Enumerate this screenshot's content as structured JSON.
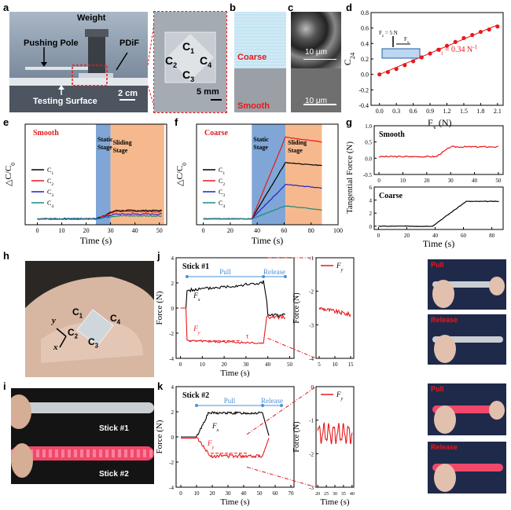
{
  "panels": {
    "a": {
      "letter": "a",
      "weight": "Weight",
      "pushing_pole": "Pushing Pole",
      "pdif": "PDiF",
      "testing_surface": "Testing Surface",
      "scale1": "2 cm",
      "scale2": "5 mm",
      "c1": "C",
      "c2": "C",
      "c3": "C",
      "c4": "C",
      "sub1": "1",
      "sub2": "2",
      "sub3": "3",
      "sub4": "4"
    },
    "b": {
      "letter": "b",
      "coarse": "Coarse",
      "smooth": "Smooth"
    },
    "c": {
      "letter": "c",
      "scale1": "10 μm",
      "scale2": "10 μm"
    },
    "d": {
      "letter": "d"
    },
    "e": {
      "letter": "e"
    },
    "f": {
      "letter": "f"
    },
    "g": {
      "letter": "g"
    },
    "h": {
      "letter": "h",
      "y": "y",
      "x": "x"
    },
    "i": {
      "letter": "i",
      "stick1": "Stick #1",
      "stick2": "Stick #2"
    },
    "j": {
      "letter": "j",
      "pull": "Pull",
      "release": "Release"
    },
    "k": {
      "letter": "k",
      "pull": "Pull",
      "release": "Release"
    }
  },
  "colors": {
    "red": "#e8191c",
    "blue": "#1f1fd0",
    "green": "#1a8a7a",
    "black": "#000000",
    "static": "#7fa6d6",
    "sliding": "#f6b98e"
  },
  "chart_data": [
    {
      "id": "d",
      "type": "scatter",
      "ylabel": "C",
      "ylabel_sub": "24",
      "xlabel": "F",
      "xlabel_sub": "x",
      "xlabel_unit": " (N)",
      "x": [
        0,
        0.15,
        0.3,
        0.45,
        0.6,
        0.75,
        0.9,
        1.05,
        1.2,
        1.35,
        1.5,
        1.65,
        1.8,
        1.95,
        2.1
      ],
      "y": [
        0.0,
        0.03,
        0.07,
        0.12,
        0.17,
        0.22,
        0.27,
        0.32,
        0.37,
        0.42,
        0.47,
        0.51,
        0.55,
        0.58,
        0.62
      ],
      "xticks": [
        "0.0",
        "0.3",
        "0.6",
        "0.9",
        "1.2",
        "1.5",
        "1.8",
        "2.1"
      ],
      "yticks": [
        "-0.4",
        "-0.2",
        "0.0",
        "0.2",
        "0.4",
        "0.6",
        "0.8"
      ],
      "xlim": [
        -0.15,
        2.2
      ],
      "ylim": [
        -0.4,
        0.8
      ],
      "annotation": "σ",
      "annotation_sub": "t",
      "annotation_rest": " = 0.34 N",
      "annotation_sup": "-1",
      "inset_fz": "F",
      "inset_fz_sub": "z",
      "inset_fz_rest": " = 5 N",
      "inset_fx": "F",
      "inset_fx_sub": "x"
    },
    {
      "id": "e",
      "type": "line",
      "title": "Smooth",
      "ylabel": "△C/C",
      "ylabel_sub": "0",
      "xlabel": "Time (s)",
      "xticks": [
        "0",
        "10",
        "20",
        "30",
        "40",
        "50"
      ],
      "xlim": [
        -5,
        53
      ],
      "ylim": [
        -0.1,
        1.6
      ],
      "static_label": [
        "Static",
        "Stage"
      ],
      "sliding_label": [
        "Sliding",
        "Stage"
      ],
      "static_range": [
        24,
        30
      ],
      "sliding_range": [
        30,
        52
      ],
      "series": [
        {
          "name": "C",
          "sub": "1"
        },
        {
          "name": "C",
          "sub": "2"
        },
        {
          "name": "C",
          "sub": "3"
        },
        {
          "name": "C",
          "sub": "4"
        }
      ]
    },
    {
      "id": "f",
      "type": "line",
      "title": "Coarse",
      "ylabel": "△C/C",
      "ylabel_sub": "0",
      "xlabel": "Time (s)",
      "xticks": [
        "0",
        "20",
        "40",
        "60",
        "80",
        "100"
      ],
      "xlim": [
        -5,
        100
      ],
      "ylim": [
        -0.1,
        1.6
      ],
      "static_label": [
        "Static",
        "Stage"
      ],
      "sliding_label": [
        "Sliding",
        "Stage"
      ],
      "static_range": [
        36,
        61
      ],
      "sliding_range": [
        61,
        88
      ],
      "series": [
        {
          "name": "C",
          "sub": "1"
        },
        {
          "name": "C",
          "sub": "2"
        },
        {
          "name": "C",
          "sub": "3"
        },
        {
          "name": "C",
          "sub": "4"
        }
      ]
    },
    {
      "id": "g1",
      "type": "line",
      "title": "Smooth",
      "ylabel": "Tangential Force (N)",
      "xticks": [
        "0",
        "10",
        "20",
        "30",
        "40",
        "50"
      ],
      "yticks": [
        "1.0",
        "0.5",
        "0.0",
        "-0.5"
      ],
      "xlim": [
        -2,
        52
      ],
      "ylim": [
        -0.5,
        1.0
      ]
    },
    {
      "id": "g2",
      "type": "line",
      "title": "Coarse",
      "xlabel": "Time (s)",
      "xticks": [
        "0",
        "20",
        "40",
        "60",
        "80"
      ],
      "yticks": [
        "6",
        "4",
        "2",
        "0"
      ],
      "xlim": [
        -3,
        88
      ],
      "ylim": [
        -0.5,
        6
      ]
    },
    {
      "id": "j",
      "type": "line",
      "title": "Stick #1",
      "ylabel": "Force (N)",
      "xlabel": "Time (s)",
      "xticks": [
        "0",
        "10",
        "20",
        "30",
        "40",
        "50"
      ],
      "yticks": [
        "4",
        "2",
        "0",
        "-2",
        "-4"
      ],
      "xlim": [
        -2,
        52
      ],
      "ylim": [
        -4,
        4
      ],
      "series": [
        {
          "name": "F",
          "sub": "x"
        },
        {
          "name": "F",
          "sub": "y"
        }
      ],
      "tau": "τ"
    },
    {
      "id": "j2",
      "type": "line",
      "legend": "F",
      "legend_sub": "y",
      "ylabel": "Force (N)",
      "xticks": [
        "5",
        "10",
        "15"
      ],
      "yticks": [
        "-1",
        "-2",
        "-3",
        "-4"
      ],
      "xlim": [
        4,
        16
      ],
      "ylim": [
        -4,
        -1
      ]
    },
    {
      "id": "k",
      "type": "line",
      "title": "Stick #2",
      "ylabel": "Force (N)",
      "xlabel": "Time (s)",
      "xticks": [
        "0",
        "10",
        "20",
        "30",
        "40",
        "50",
        "60",
        "70"
      ],
      "yticks": [
        "4",
        "2",
        "0",
        "-2",
        "-4"
      ],
      "xlim": [
        -3,
        72
      ],
      "ylim": [
        -4,
        4
      ],
      "series": [
        {
          "name": "F",
          "sub": "x"
        },
        {
          "name": "F",
          "sub": "y"
        }
      ]
    },
    {
      "id": "k2",
      "type": "line",
      "legend": "F",
      "legend_sub": "y",
      "ylabel": "Force (N)",
      "xlabel": "Time (s)",
      "xticks": [
        "20",
        "25",
        "30",
        "35",
        "40"
      ],
      "yticks": [
        "0",
        "-1",
        "-2",
        "-3"
      ],
      "xlim": [
        19,
        41
      ],
      "ylim": [
        -3,
        0
      ]
    }
  ],
  "photos": {
    "pull": "Pull",
    "release": "Release"
  }
}
